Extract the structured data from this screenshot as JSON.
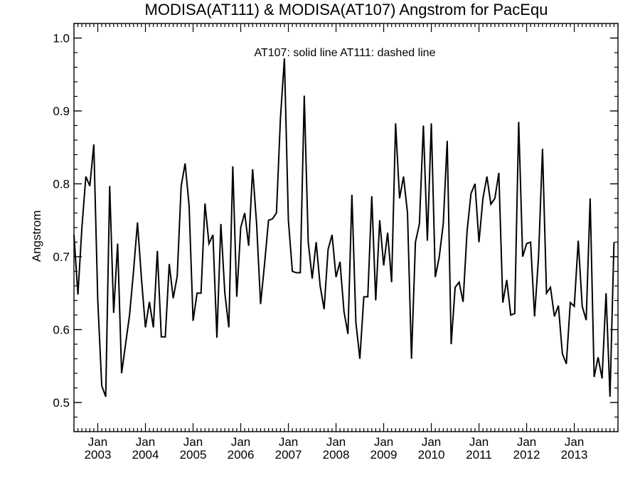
{
  "chart_data": {
    "type": "line",
    "title": "MODISA(AT111) & MODISA(AT107)  Angstrom for PacEqu",
    "annotation": "AT107: solid line   AT111: dashed line",
    "xlabel": "",
    "ylabel": "Angstrom",
    "x_start": "2002-07",
    "x_end": "2013-12",
    "xlim": [
      "2002-07",
      "2013-12"
    ],
    "ylim": [
      0.46,
      1.02
    ],
    "y_ticks": [
      "0.5",
      "0.6",
      "0.7",
      "0.8",
      "0.9",
      "1.0"
    ],
    "x_tick_labels": [
      {
        "month": "Jan",
        "year": "2003"
      },
      {
        "month": "Jan",
        "year": "2004"
      },
      {
        "month": "Jan",
        "year": "2005"
      },
      {
        "month": "Jan",
        "year": "2006"
      },
      {
        "month": "Jan",
        "year": "2007"
      },
      {
        "month": "Jan",
        "year": "2008"
      },
      {
        "month": "Jan",
        "year": "2009"
      },
      {
        "month": "Jan",
        "year": "2010"
      },
      {
        "month": "Jan",
        "year": "2011"
      },
      {
        "month": "Jan",
        "year": "2012"
      },
      {
        "month": "Jan",
        "year": "2013"
      }
    ],
    "series": [
      {
        "name": "AT107",
        "style": "solid",
        "color": "#000000",
        "values": [
          0.73,
          0.648,
          0.74,
          0.81,
          0.797,
          0.854,
          0.64,
          0.523,
          0.508,
          0.797,
          0.623,
          0.718,
          0.54,
          0.58,
          0.62,
          0.68,
          0.747,
          0.67,
          0.603,
          0.638,
          0.603,
          0.708,
          0.59,
          0.59,
          0.69,
          0.643,
          0.673,
          0.797,
          0.828,
          0.77,
          0.612,
          0.65,
          0.65,
          0.773,
          0.718,
          0.73,
          0.589,
          0.745,
          0.65,
          0.603,
          0.824,
          0.645,
          0.74,
          0.76,
          0.715,
          0.82,
          0.745,
          0.635,
          0.69,
          0.75,
          0.752,
          0.76,
          0.89,
          0.972,
          0.75,
          0.68,
          0.678,
          0.678,
          0.921,
          0.72,
          0.67,
          0.72,
          0.66,
          0.628,
          0.71,
          0.73,
          0.672,
          0.693,
          0.625,
          0.594,
          0.785,
          0.61,
          0.56,
          0.645,
          0.645,
          0.783,
          0.64,
          0.75,
          0.688,
          0.733,
          0.665,
          0.883,
          0.78,
          0.81,
          0.76,
          0.56,
          0.72,
          0.745,
          0.88,
          0.722,
          0.883,
          0.672,
          0.7,
          0.745,
          0.859,
          0.58,
          0.658,
          0.665,
          0.638,
          0.735,
          0.787,
          0.8,
          0.72,
          0.78,
          0.81,
          0.772,
          0.78,
          0.815,
          0.637,
          0.668,
          0.62,
          0.622,
          0.885,
          0.7,
          0.718,
          0.72,
          0.618,
          0.7,
          0.848,
          0.65,
          0.658,
          0.618,
          0.633,
          0.567,
          0.553,
          0.637,
          0.632,
          0.722,
          0.632,
          0.613,
          0.78,
          0.535,
          0.562,
          0.533,
          0.65,
          0.508,
          0.72
        ]
      }
    ],
    "grid": false,
    "legend": "none"
  }
}
